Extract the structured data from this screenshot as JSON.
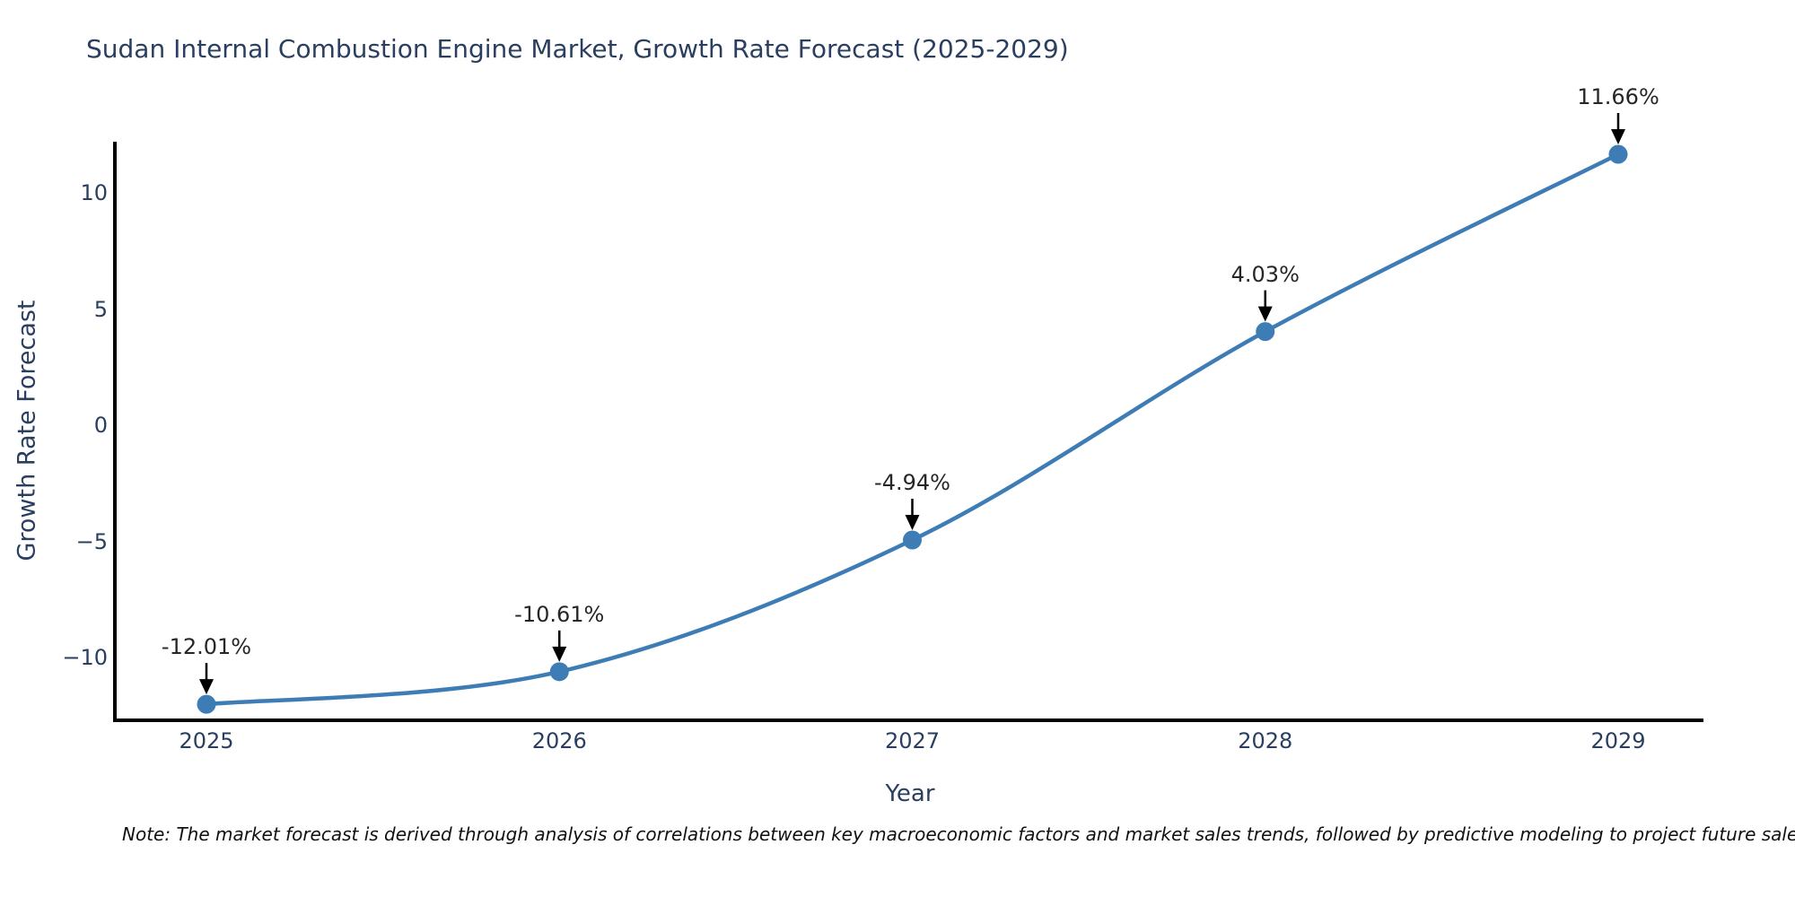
{
  "chart_data": {
    "type": "line",
    "title": "Sudan Internal Combustion Engine Market, Growth Rate Forecast (2025-2029)",
    "xlabel": "Year",
    "ylabel": "Growth Rate Forecast",
    "categories": [
      "2025",
      "2026",
      "2027",
      "2028",
      "2029"
    ],
    "series": [
      {
        "name": "Growth Rate Forecast",
        "values": [
          -12.01,
          -10.61,
          -4.94,
          4.03,
          11.66
        ],
        "point_labels": [
          "-12.01%",
          "-10.61%",
          "-4.94%",
          "4.03%",
          "11.66%"
        ]
      }
    ],
    "y_ticks": [
      {
        "label": "10",
        "value": 10
      },
      {
        "label": "5",
        "value": 5
      },
      {
        "label": "0",
        "value": 0
      },
      {
        "label": "−5",
        "value": -5
      },
      {
        "label": "−10",
        "value": -10
      }
    ],
    "ylim": [
      -12.7,
      12.2
    ],
    "grid": false,
    "legend_position": "none",
    "line_shape": "spline",
    "annotation_style": "value label with black arrow pointing down to marker",
    "colors": {
      "line": "#3e7cb6",
      "marker": "#3e7cb6",
      "axis": "#000000",
      "axis_text": "#2a3f5f",
      "annotation_text": "#262626",
      "arrow": "#000000",
      "background": "#ffffff"
    },
    "note": "Note: The market forecast is derived through analysis of correlations between key macroeconomic factors and market sales trends, followed by predictive modeling to project future sales"
  }
}
